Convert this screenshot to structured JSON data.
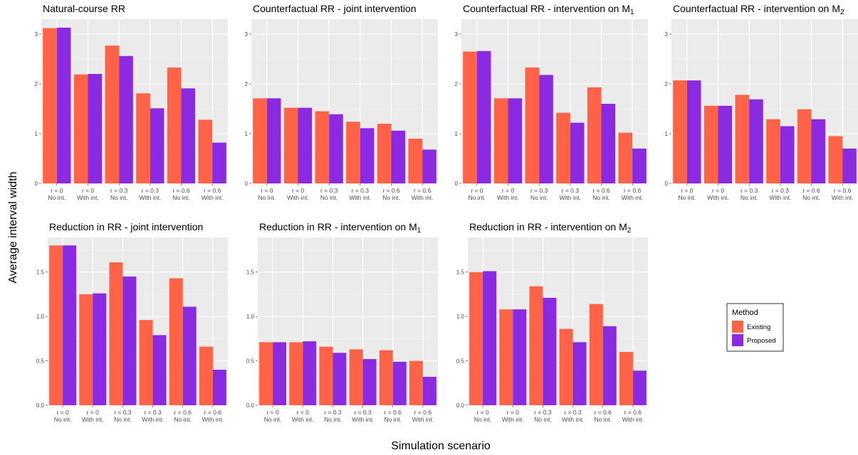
{
  "chart_data": {
    "type": "bar",
    "xlabel": "Simulation scenario",
    "ylabel": "Average interval width",
    "legend": {
      "title": "Method",
      "placement": "right",
      "entries": [
        {
          "name": "Existing",
          "color": "#ff6347"
        },
        {
          "name": "Proposed",
          "color": "#8a2be2"
        }
      ]
    },
    "categories": [
      {
        "line1": "r = 0",
        "line2": "No int."
      },
      {
        "line1": "r = 0",
        "line2": "With int."
      },
      {
        "line1": "r = 0.3",
        "line2": "No int."
      },
      {
        "line1": "r = 0.3",
        "line2": "With int."
      },
      {
        "line1": "r = 0.6",
        "line2": "No int."
      },
      {
        "line1": "r = 0.6",
        "line2": "With int."
      }
    ],
    "panels": [
      {
        "title": {
          "text": "Natural-course RR",
          "sub": ""
        },
        "ylim": [
          0,
          3.3
        ],
        "yticks": [
          0,
          1,
          2,
          3
        ],
        "series": [
          {
            "name": "Existing",
            "values": [
              3.12,
              2.19,
              2.77,
              1.81,
              2.33,
              1.28
            ]
          },
          {
            "name": "Proposed",
            "values": [
              3.13,
              2.2,
              2.56,
              1.51,
              1.91,
              0.82
            ]
          }
        ]
      },
      {
        "title": {
          "text": "Counterfactual RR - joint intervention",
          "sub": ""
        },
        "ylim": [
          0,
          3.3
        ],
        "yticks": [
          0,
          1,
          2,
          3
        ],
        "series": [
          {
            "name": "Existing",
            "values": [
              1.71,
              1.52,
              1.45,
              1.24,
              1.2,
              0.9
            ]
          },
          {
            "name": "Proposed",
            "values": [
              1.71,
              1.52,
              1.39,
              1.11,
              1.06,
              0.68
            ]
          }
        ]
      },
      {
        "title": {
          "text": "Counterfactual RR - intervention on M",
          "sub": "1"
        },
        "ylim": [
          0,
          3.3
        ],
        "yticks": [
          0,
          1,
          2,
          3
        ],
        "series": [
          {
            "name": "Existing",
            "values": [
              2.65,
              1.71,
              2.33,
              1.42,
              1.93,
              1.02
            ]
          },
          {
            "name": "Proposed",
            "values": [
              2.66,
              1.71,
              2.18,
              1.22,
              1.6,
              0.7
            ]
          }
        ]
      },
      {
        "title": {
          "text": "Counterfactual RR - intervention on M",
          "sub": "2"
        },
        "ylim": [
          0,
          3.3
        ],
        "yticks": [
          0,
          1,
          2,
          3
        ],
        "series": [
          {
            "name": "Existing",
            "values": [
              2.07,
              1.56,
              1.78,
              1.29,
              1.49,
              0.95
            ]
          },
          {
            "name": "Proposed",
            "values": [
              2.07,
              1.56,
              1.69,
              1.15,
              1.29,
              0.7
            ]
          }
        ]
      },
      {
        "title": {
          "text": "Reduction in RR - joint intervention",
          "sub": ""
        },
        "ylim": [
          0,
          1.89
        ],
        "yticks": [
          "0.0",
          "0.5",
          "1.0",
          "1.5"
        ],
        "series": [
          {
            "name": "Existing",
            "values": [
              1.8,
              1.25,
              1.61,
              0.96,
              1.43,
              0.66
            ]
          },
          {
            "name": "Proposed",
            "values": [
              1.8,
              1.26,
              1.45,
              0.79,
              1.11,
              0.4
            ]
          }
        ]
      },
      {
        "title": {
          "text": "Reduction in RR - intervention on M",
          "sub": "1"
        },
        "ylim": [
          0,
          1.89
        ],
        "yticks": [
          "0.0",
          "0.5",
          "1.0",
          "1.5"
        ],
        "series": [
          {
            "name": "Existing",
            "values": [
              0.71,
              0.71,
              0.66,
              0.63,
              0.62,
              0.5
            ]
          },
          {
            "name": "Proposed",
            "values": [
              0.71,
              0.72,
              0.59,
              0.52,
              0.49,
              0.32
            ]
          }
        ]
      },
      {
        "title": {
          "text": "Reduction in RR - intervention on M",
          "sub": "2"
        },
        "ylim": [
          0,
          1.89
        ],
        "yticks": [
          "0.0",
          "0.5",
          "1.0",
          "1.5"
        ],
        "series": [
          {
            "name": "Existing",
            "values": [
              1.5,
              1.08,
              1.34,
              0.86,
              1.14,
              0.6
            ]
          },
          {
            "name": "Proposed",
            "values": [
              1.51,
              1.08,
              1.21,
              0.71,
              0.89,
              0.39
            ]
          }
        ]
      }
    ]
  }
}
